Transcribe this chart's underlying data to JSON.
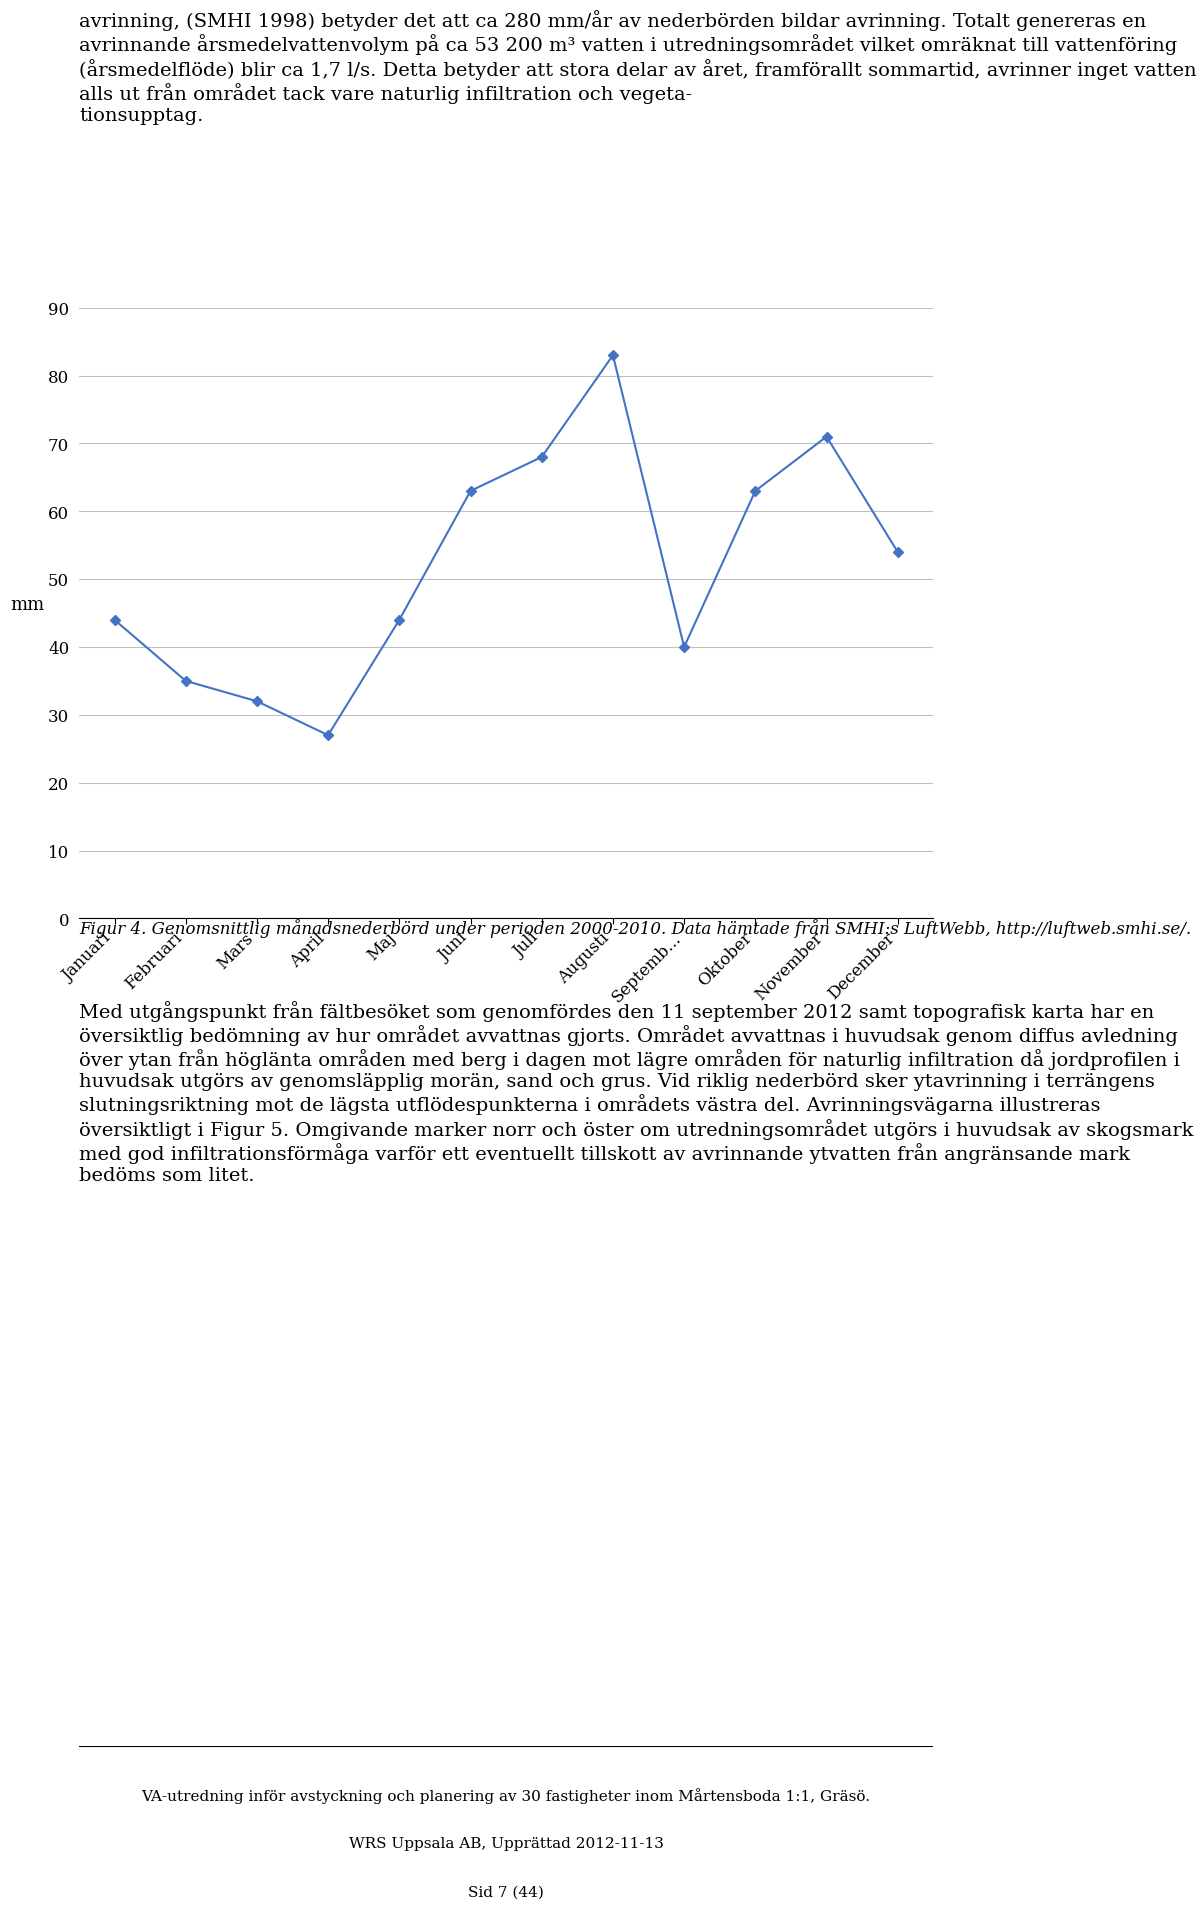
{
  "intro_text": "avrinning, (SMHI 1998) betyder det att ca 280 mm/år av nederbörden bildar avrinning. Totalt genereras en avrinnande årsmedelvattenvolym på ca 53 200 m³ vatten i utredningsområdet vilket omräknat till vattenföring (årsmedelflöde) blir ca 1,7 l/s. Detta betyder att stora delar av året, framförallt sommartid, avrinner inget vatten alls ut från området tack vare naturlig infiltration och vegeta-\ntionsupptag.",
  "months": [
    "Januari",
    "Februari",
    "Mars",
    "April",
    "Maj",
    "Juni",
    "Juli",
    "Augusti",
    "Septemb...",
    "Oktober",
    "November",
    "December"
  ],
  "values": [
    44,
    35,
    32,
    27,
    44,
    63,
    68,
    83,
    40,
    63,
    71,
    54
  ],
  "ylabel": "mm",
  "ylim": [
    0,
    90
  ],
  "yticks": [
    0,
    10,
    20,
    30,
    40,
    50,
    60,
    70,
    80,
    90
  ],
  "line_color": "#4472C4",
  "marker": "D",
  "marker_size": 5,
  "line_width": 1.5,
  "caption_bold": "Figur 4. Genomsnittlig månadsnederbörd under perioden 2000-2010. Data hämtade från SMHI:s LuftWebb, ",
  "caption_url": "http://luftweb.smhi.se/",
  "body_text": "Med utgångspunkt från fältbesöket som genomfördes den 11 september 2012 samt topografisk karta har en översiktlig bedömning av hur området avvattnas gjorts. Området avvattnas i huvudsak genom diffus avledning över ytan från höglänta områden med berg i dagen mot lägre områden för naturlig infiltration då jordprofilen i huvudsak utgörs av genomsläpplig morän, sand och grus. Vid riklig nederbörd sker ytavrinning i terrängens slutningsriktning mot de lägsta utflödespunkterna i områdets västra del. Avrinningsvägarna illustreras översiktligt i Figur 5. Omgivande marker norr och öster om utredningsområdet utgörs i huvudsak av skogsmark med god infiltrationsförmåga varför ett eventuellt tillskott av avrinnande ytvatten från angränsande mark bedöms som litet.",
  "footer_line": "VA-utredning inför avstyckning och planering av 30 fastigheter inom Mårtensboda 1:1, Gräsö.",
  "footer_line2": "WRS Uppsala AB, Upprättad 2012-11-13",
  "footer_line3": "Sid 7 (44)",
  "bg_color": "#ffffff",
  "text_color": "#000000",
  "grid_color": "#c0c0c0",
  "intro_fontsize": 14,
  "body_fontsize": 14,
  "caption_fontsize": 12,
  "footer_fontsize": 11,
  "tick_label_fontsize": 12,
  "ylabel_fontsize": 13,
  "tick_rotation": 45
}
